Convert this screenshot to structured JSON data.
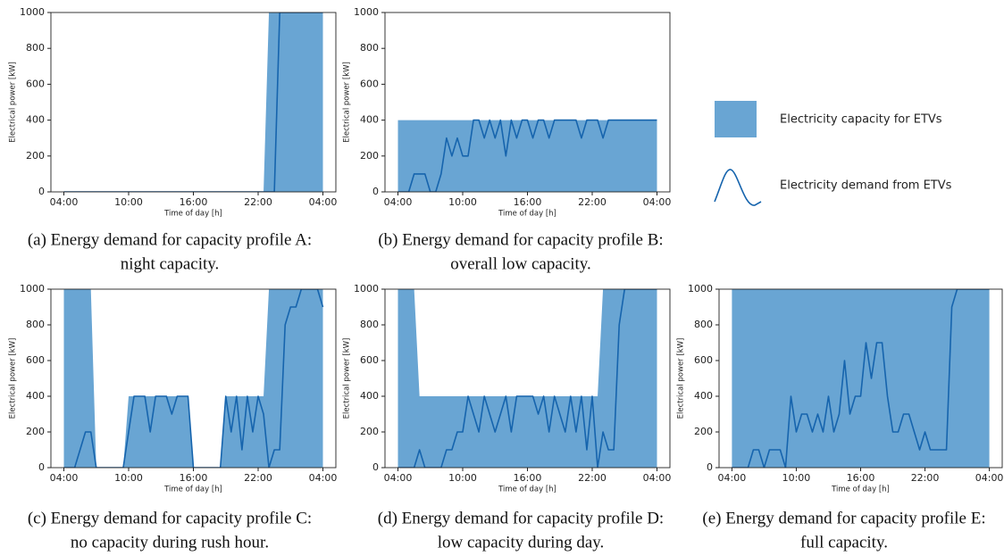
{
  "legend": [
    {
      "name": "Electricity capacity for ETVs",
      "color": "#69a5d3"
    },
    {
      "name": "Electricity demand from ETVs",
      "color": "#1664ad"
    }
  ],
  "chart_data": [
    {
      "type": "area_line",
      "caption": [
        "(a) Energy demand for capacity profile A:",
        "night capacity."
      ],
      "xlabel": "Time of day [h]",
      "ylabel": "Electrical power [kW]",
      "xlim": [
        2.8,
        29.2
      ],
      "ylim": [
        0,
        1000
      ],
      "xticks": [
        {
          "value": 4,
          "label": "04:00"
        },
        {
          "value": 10,
          "label": "10:00"
        },
        {
          "value": 16,
          "label": "16:00"
        },
        {
          "value": 22,
          "label": "22:00"
        },
        {
          "value": 28,
          "label": "04:00"
        }
      ],
      "yticks": [
        0,
        200,
        400,
        600,
        800,
        1000
      ],
      "x": [
        4,
        4.5,
        5,
        5.5,
        6,
        6.5,
        7,
        7.5,
        8,
        8.5,
        9,
        9.5,
        10,
        10.5,
        11,
        11.5,
        12,
        12.5,
        13,
        13.5,
        14,
        14.5,
        15,
        15.5,
        16,
        16.5,
        17,
        17.5,
        18,
        18.5,
        19,
        19.5,
        20,
        20.5,
        21,
        21.5,
        22,
        22.5,
        23,
        23.5,
        24,
        24.5,
        25,
        25.5,
        26,
        26.5,
        27,
        27.5,
        28
      ],
      "series": [
        {
          "kind": "area",
          "color": "#69a5d3",
          "values": [
            0,
            0,
            0,
            0,
            0,
            0,
            0,
            0,
            0,
            0,
            0,
            0,
            0,
            0,
            0,
            0,
            0,
            0,
            0,
            0,
            0,
            0,
            0,
            0,
            0,
            0,
            0,
            0,
            0,
            0,
            0,
            0,
            0,
            0,
            0,
            0,
            0,
            0,
            1000,
            1000,
            1000,
            1000,
            1000,
            1000,
            1000,
            1000,
            1000,
            1000,
            1000
          ]
        },
        {
          "kind": "line",
          "color": "#1664ad",
          "values": [
            0,
            0,
            0,
            0,
            0,
            0,
            0,
            0,
            0,
            0,
            0,
            0,
            0,
            0,
            0,
            0,
            0,
            0,
            0,
            0,
            0,
            0,
            0,
            0,
            0,
            0,
            0,
            0,
            0,
            0,
            0,
            0,
            0,
            0,
            0,
            0,
            0,
            0,
            0,
            0,
            1000,
            1000,
            1000,
            1000,
            1000,
            1000,
            1000,
            1000,
            1000
          ]
        }
      ]
    },
    {
      "type": "area_line",
      "caption": [
        "(b) Energy demand for capacity profile B:",
        "overall low capacity."
      ],
      "xlabel": "Time of day [h]",
      "ylabel": "Electrical power [kW]",
      "xlim": [
        2.8,
        29.2
      ],
      "ylim": [
        0,
        1000
      ],
      "xticks": [
        {
          "value": 4,
          "label": "04:00"
        },
        {
          "value": 10,
          "label": "10:00"
        },
        {
          "value": 16,
          "label": "16:00"
        },
        {
          "value": 22,
          "label": "22:00"
        },
        {
          "value": 28,
          "label": "04:00"
        }
      ],
      "yticks": [
        0,
        200,
        400,
        600,
        800,
        1000
      ],
      "x": [
        4,
        4.5,
        5,
        5.5,
        6,
        6.5,
        7,
        7.5,
        8,
        8.5,
        9,
        9.5,
        10,
        10.5,
        11,
        11.5,
        12,
        12.5,
        13,
        13.5,
        14,
        14.5,
        15,
        15.5,
        16,
        16.5,
        17,
        17.5,
        18,
        18.5,
        19,
        19.5,
        20,
        20.5,
        21,
        21.5,
        22,
        22.5,
        23,
        23.5,
        24,
        24.5,
        25,
        25.5,
        26,
        26.5,
        27,
        27.5,
        28
      ],
      "series": [
        {
          "kind": "area",
          "color": "#69a5d3",
          "values": [
            400,
            400,
            400,
            400,
            400,
            400,
            400,
            400,
            400,
            400,
            400,
            400,
            400,
            400,
            400,
            400,
            400,
            400,
            400,
            400,
            400,
            400,
            400,
            400,
            400,
            400,
            400,
            400,
            400,
            400,
            400,
            400,
            400,
            400,
            400,
            400,
            400,
            400,
            400,
            400,
            400,
            400,
            400,
            400,
            400,
            400,
            400,
            400,
            400
          ]
        },
        {
          "kind": "line",
          "color": "#1664ad",
          "values": [
            0,
            0,
            0,
            100,
            100,
            100,
            0,
            0,
            100,
            300,
            200,
            300,
            200,
            200,
            400,
            400,
            300,
            400,
            300,
            400,
            200,
            400,
            300,
            400,
            400,
            300,
            400,
            400,
            300,
            400,
            400,
            400,
            400,
            400,
            300,
            400,
            400,
            400,
            300,
            400,
            400,
            400,
            400,
            400,
            400,
            400,
            400,
            400,
            400
          ]
        }
      ]
    },
    {
      "type": "area_line",
      "caption": [
        "(c) Energy demand for capacity profile C:",
        "no capacity during rush hour."
      ],
      "xlabel": "Time of day [h]",
      "ylabel": "Electrical power [kW]",
      "xlim": [
        2.8,
        29.2
      ],
      "ylim": [
        0,
        1000
      ],
      "xticks": [
        {
          "value": 4,
          "label": "04:00"
        },
        {
          "value": 10,
          "label": "10:00"
        },
        {
          "value": 16,
          "label": "16:00"
        },
        {
          "value": 22,
          "label": "22:00"
        },
        {
          "value": 28,
          "label": "04:00"
        }
      ],
      "yticks": [
        0,
        200,
        400,
        600,
        800,
        1000
      ],
      "x": [
        4,
        4.5,
        5,
        5.5,
        6,
        6.5,
        7,
        7.5,
        8,
        8.5,
        9,
        9.5,
        10,
        10.5,
        11,
        11.5,
        12,
        12.5,
        13,
        13.5,
        14,
        14.5,
        15,
        15.5,
        16,
        16.5,
        17,
        17.5,
        18,
        18.5,
        19,
        19.5,
        20,
        20.5,
        21,
        21.5,
        22,
        22.5,
        23,
        23.5,
        24,
        24.5,
        25,
        25.5,
        26,
        26.5,
        27,
        27.5,
        28
      ],
      "series": [
        {
          "kind": "area",
          "color": "#69a5d3",
          "values": [
            1000,
            1000,
            1000,
            1000,
            1000,
            1000,
            0,
            0,
            0,
            0,
            0,
            0,
            400,
            400,
            400,
            400,
            400,
            400,
            400,
            400,
            400,
            400,
            400,
            400,
            0,
            0,
            0,
            0,
            0,
            0,
            400,
            400,
            400,
            400,
            400,
            400,
            400,
            400,
            1000,
            1000,
            1000,
            1000,
            1000,
            1000,
            1000,
            1000,
            1000,
            1000,
            1000
          ]
        },
        {
          "kind": "line",
          "color": "#1664ad",
          "values": [
            0,
            0,
            0,
            100,
            200,
            200,
            0,
            0,
            0,
            0,
            0,
            0,
            200,
            400,
            400,
            400,
            200,
            400,
            400,
            400,
            300,
            400,
            400,
            400,
            0,
            0,
            0,
            0,
            0,
            0,
            400,
            200,
            400,
            100,
            400,
            200,
            400,
            300,
            0,
            100,
            100,
            800,
            900,
            900,
            1000,
            1000,
            1000,
            1000,
            900
          ]
        }
      ]
    },
    {
      "type": "area_line",
      "caption": [
        "(d) Energy demand for capacity profile D:",
        "low capacity during day."
      ],
      "xlabel": "Time of day [h]",
      "ylabel": "Electrical power [kW]",
      "xlim": [
        2.8,
        29.2
      ],
      "ylim": [
        0,
        1000
      ],
      "xticks": [
        {
          "value": 4,
          "label": "04:00"
        },
        {
          "value": 10,
          "label": "10:00"
        },
        {
          "value": 16,
          "label": "16:00"
        },
        {
          "value": 22,
          "label": "22:00"
        },
        {
          "value": 28,
          "label": "04:00"
        }
      ],
      "yticks": [
        0,
        200,
        400,
        600,
        800,
        1000
      ],
      "x": [
        4,
        4.5,
        5,
        5.5,
        6,
        6.5,
        7,
        7.5,
        8,
        8.5,
        9,
        9.5,
        10,
        10.5,
        11,
        11.5,
        12,
        12.5,
        13,
        13.5,
        14,
        14.5,
        15,
        15.5,
        16,
        16.5,
        17,
        17.5,
        18,
        18.5,
        19,
        19.5,
        20,
        20.5,
        21,
        21.5,
        22,
        22.5,
        23,
        23.5,
        24,
        24.5,
        25,
        25.5,
        26,
        26.5,
        27,
        27.5,
        28
      ],
      "series": [
        {
          "kind": "area",
          "color": "#69a5d3",
          "values": [
            1000,
            1000,
            1000,
            1000,
            400,
            400,
            400,
            400,
            400,
            400,
            400,
            400,
            400,
            400,
            400,
            400,
            400,
            400,
            400,
            400,
            400,
            400,
            400,
            400,
            400,
            400,
            400,
            400,
            400,
            400,
            400,
            400,
            400,
            400,
            400,
            400,
            400,
            400,
            1000,
            1000,
            1000,
            1000,
            1000,
            1000,
            1000,
            1000,
            1000,
            1000,
            1000
          ]
        },
        {
          "kind": "line",
          "color": "#1664ad",
          "values": [
            0,
            0,
            0,
            0,
            100,
            0,
            0,
            0,
            0,
            100,
            100,
            200,
            200,
            400,
            300,
            200,
            400,
            300,
            200,
            300,
            400,
            200,
            400,
            400,
            400,
            400,
            300,
            400,
            200,
            400,
            300,
            200,
            400,
            200,
            400,
            100,
            400,
            0,
            200,
            100,
            100,
            800,
            1000,
            1000,
            1000,
            1000,
            1000,
            1000,
            1000
          ]
        }
      ]
    },
    {
      "type": "area_line",
      "caption": [
        "(e) Energy demand for capacity profile E:",
        "full capacity."
      ],
      "xlabel": "Time of day [h]",
      "ylabel": "Electrical power [kW]",
      "xlim": [
        2.8,
        29.2
      ],
      "ylim": [
        0,
        1000
      ],
      "xticks": [
        {
          "value": 4,
          "label": "04:00"
        },
        {
          "value": 10,
          "label": "10:00"
        },
        {
          "value": 16,
          "label": "16:00"
        },
        {
          "value": 22,
          "label": "22:00"
        },
        {
          "value": 28,
          "label": "04:00"
        }
      ],
      "yticks": [
        0,
        200,
        400,
        600,
        800,
        1000
      ],
      "x": [
        4,
        4.5,
        5,
        5.5,
        6,
        6.5,
        7,
        7.5,
        8,
        8.5,
        9,
        9.5,
        10,
        10.5,
        11,
        11.5,
        12,
        12.5,
        13,
        13.5,
        14,
        14.5,
        15,
        15.5,
        16,
        16.5,
        17,
        17.5,
        18,
        18.5,
        19,
        19.5,
        20,
        20.5,
        21,
        21.5,
        22,
        22.5,
        23,
        23.5,
        24,
        24.5,
        25,
        25.5,
        26,
        26.5,
        27,
        27.5,
        28
      ],
      "series": [
        {
          "kind": "area",
          "color": "#69a5d3",
          "values": [
            1000,
            1000,
            1000,
            1000,
            1000,
            1000,
            1000,
            1000,
            1000,
            1000,
            1000,
            1000,
            1000,
            1000,
            1000,
            1000,
            1000,
            1000,
            1000,
            1000,
            1000,
            1000,
            1000,
            1000,
            1000,
            1000,
            1000,
            1000,
            1000,
            1000,
            1000,
            1000,
            1000,
            1000,
            1000,
            1000,
            1000,
            1000,
            1000,
            1000,
            1000,
            1000,
            1000,
            1000,
            1000,
            1000,
            1000,
            1000,
            1000
          ]
        },
        {
          "kind": "line",
          "color": "#1664ad",
          "values": [
            0,
            0,
            0,
            0,
            100,
            100,
            0,
            100,
            100,
            100,
            0,
            400,
            200,
            300,
            300,
            200,
            300,
            200,
            400,
            200,
            300,
            600,
            300,
            400,
            400,
            700,
            500,
            700,
            700,
            400,
            200,
            200,
            300,
            300,
            200,
            100,
            200,
            100,
            100,
            100,
            100,
            900,
            1000,
            1000,
            1000,
            1000,
            1000,
            1000,
            1000
          ]
        }
      ]
    }
  ]
}
